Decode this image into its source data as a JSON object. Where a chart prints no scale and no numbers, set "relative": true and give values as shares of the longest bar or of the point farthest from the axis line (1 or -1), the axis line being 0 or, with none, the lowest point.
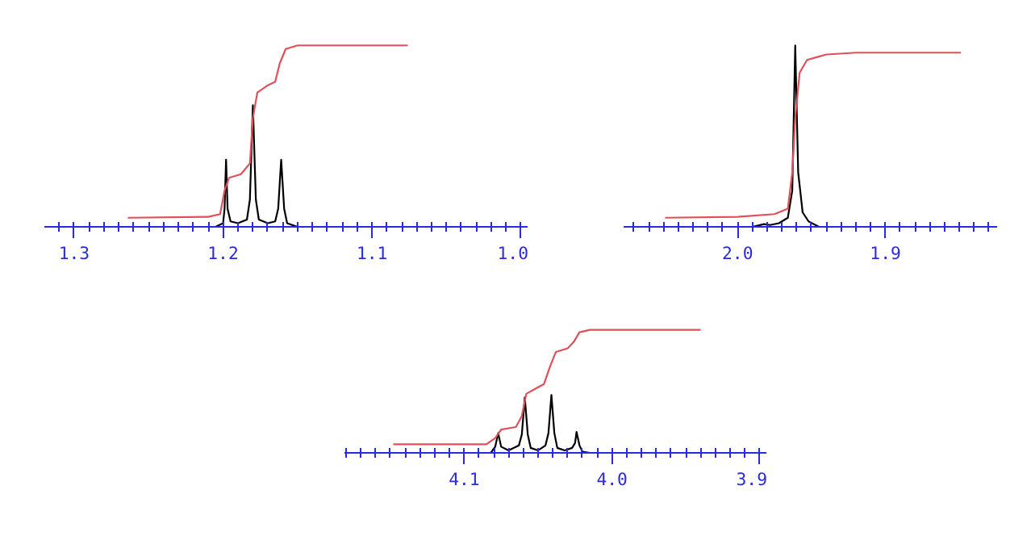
{
  "chart_data": [
    {
      "type": "line",
      "relative": true,
      "xlim": [
        1.32,
        0.995
      ],
      "xticks": [
        {
          "value": 1.31,
          "label": null
        },
        1.3,
        {
          "value": 1.29,
          "label": null
        },
        {
          "value": 1.28,
          "label": null
        },
        {
          "value": 1.27,
          "label": null
        },
        {
          "value": 1.26,
          "label": null
        },
        {
          "value": 1.25,
          "label": null
        },
        {
          "value": 1.24,
          "label": null
        },
        {
          "value": 1.23,
          "label": null
        },
        {
          "value": 1.22,
          "label": null
        },
        {
          "value": 1.21,
          "label": null
        },
        1.2,
        {
          "value": 1.19,
          "label": null
        },
        {
          "value": 1.18,
          "label": null
        },
        {
          "value": 1.17,
          "label": null
        },
        {
          "value": 1.16,
          "label": null
        },
        {
          "value": 1.15,
          "label": null
        },
        {
          "value": 1.14,
          "label": null
        },
        {
          "value": 1.13,
          "label": null
        },
        {
          "value": 1.12,
          "label": null
        },
        {
          "value": 1.11,
          "label": null
        },
        1.1,
        {
          "value": 1.09,
          "label": null
        },
        {
          "value": 1.08,
          "label": null
        },
        {
          "value": 1.07,
          "label": null
        },
        {
          "value": 1.06,
          "label": null
        },
        {
          "value": 1.05,
          "label": null
        },
        {
          "value": 1.04,
          "label": null
        },
        {
          "value": 1.03,
          "label": null
        },
        {
          "value": 1.02,
          "label": null
        },
        {
          "value": 1.01,
          "label": null
        },
        {
          "value": 1.0,
          "label": "1.0"
        }
      ],
      "series": [
        {
          "color": "#000000",
          "x": [
            1.32,
            1.205,
            1.2,
            1.199,
            1.198,
            1.197,
            1.195,
            1.19,
            1.184,
            1.182,
            1.18,
            1.178,
            1.176,
            1.17,
            1.165,
            1.163,
            1.161,
            1.159,
            1.157,
            1.15,
            0.995
          ],
          "values": [
            0,
            0,
            0.02,
            0.1,
            0.37,
            0.1,
            0.03,
            0.02,
            0.04,
            0.15,
            0.67,
            0.15,
            0.04,
            0.02,
            0.03,
            0.1,
            0.37,
            0.1,
            0.02,
            0,
            0
          ]
        },
        {
          "color": "#e0505a",
          "x": [
            1.264,
            1.21,
            1.202,
            1.199,
            1.196,
            1.188,
            1.182,
            1.18,
            1.177,
            1.17,
            1.165,
            1.162,
            1.158,
            1.15,
            1.076
          ],
          "values": [
            0.05,
            0.055,
            0.07,
            0.2,
            0.27,
            0.29,
            0.35,
            0.6,
            0.74,
            0.78,
            0.8,
            0.9,
            0.98,
            1.0,
            1.0
          ]
        }
      ]
    },
    {
      "type": "line",
      "relative": true,
      "xlim": [
        2.077,
        1.824
      ],
      "xticks": [
        {
          "value": 2.07,
          "label": null
        },
        {
          "value": 2.06,
          "label": null
        },
        {
          "value": 2.05,
          "label": null
        },
        {
          "value": 2.04,
          "label": null
        },
        {
          "value": 2.03,
          "label": null
        },
        {
          "value": 2.02,
          "label": null
        },
        {
          "value": 2.01,
          "label": null
        },
        {
          "value": 2.0,
          "label": "2.0"
        },
        {
          "value": 1.99,
          "label": null
        },
        {
          "value": 1.98,
          "label": null
        },
        {
          "value": 1.97,
          "label": null
        },
        {
          "value": 1.96,
          "label": null
        },
        {
          "value": 1.95,
          "label": null
        },
        {
          "value": 1.94,
          "label": null
        },
        {
          "value": 1.93,
          "label": null
        },
        {
          "value": 1.92,
          "label": null
        },
        {
          "value": 1.91,
          "label": null
        },
        1.9,
        {
          "value": 1.89,
          "label": null
        },
        {
          "value": 1.88,
          "label": null
        },
        {
          "value": 1.87,
          "label": null
        },
        {
          "value": 1.86,
          "label": null
        },
        {
          "value": 1.85,
          "label": null
        },
        {
          "value": 1.84,
          "label": null
        },
        {
          "value": 1.83,
          "label": null
        }
      ],
      "series": [
        {
          "color": "#000000",
          "x": [
            2.077,
            1.99,
            1.982,
            1.978,
            1.972,
            1.966,
            1.963,
            1.961,
            1.959,
            1.956,
            1.952,
            1.945,
            1.824
          ],
          "values": [
            0,
            0,
            0.015,
            0.01,
            0.02,
            0.05,
            0.2,
            1.0,
            0.3,
            0.08,
            0.03,
            0,
            0
          ]
        },
        {
          "color": "#e0505a",
          "x": [
            2.049,
            2.0,
            1.975,
            1.966,
            1.963,
            1.961,
            1.958,
            1.953,
            1.94,
            1.92,
            1.849
          ],
          "values": [
            0.05,
            0.055,
            0.07,
            0.1,
            0.3,
            0.6,
            0.85,
            0.92,
            0.95,
            0.96,
            0.96
          ]
        }
      ]
    },
    {
      "type": "line",
      "relative": true,
      "xlim": [
        4.181,
        3.895
      ],
      "xticks": [
        {
          "value": 4.18,
          "label": null
        },
        {
          "value": 4.17,
          "label": null
        },
        {
          "value": 4.16,
          "label": null
        },
        {
          "value": 4.15,
          "label": null
        },
        {
          "value": 4.14,
          "label": null
        },
        {
          "value": 4.13,
          "label": null
        },
        {
          "value": 4.12,
          "label": null
        },
        {
          "value": 4.11,
          "label": null
        },
        4.1,
        {
          "value": 4.09,
          "label": null
        },
        {
          "value": 4.08,
          "label": null
        },
        {
          "value": 4.07,
          "label": null
        },
        {
          "value": 4.06,
          "label": null
        },
        {
          "value": 4.05,
          "label": null
        },
        {
          "value": 4.04,
          "label": null
        },
        {
          "value": 4.03,
          "label": null
        },
        {
          "value": 4.02,
          "label": null
        },
        {
          "value": 4.01,
          "label": null
        },
        {
          "value": 4.0,
          "label": "4.0"
        },
        {
          "value": 3.99,
          "label": null
        },
        {
          "value": 3.98,
          "label": null
        },
        {
          "value": 3.97,
          "label": null
        },
        {
          "value": 3.96,
          "label": null
        },
        {
          "value": 3.95,
          "label": null
        },
        {
          "value": 3.94,
          "label": null
        },
        {
          "value": 3.93,
          "label": null
        },
        {
          "value": 3.92,
          "label": null
        },
        {
          "value": 3.91,
          "label": null
        },
        3.9
      ],
      "series": [
        {
          "color": "#000000",
          "x": [
            4.181,
            4.082,
            4.079,
            4.077,
            4.075,
            4.07,
            4.063,
            4.061,
            4.059,
            4.057,
            4.055,
            4.05,
            4.045,
            4.043,
            4.041,
            4.039,
            4.037,
            4.032,
            4.027,
            4.025,
            4.024,
            4.022,
            4.02,
            4.015,
            3.895
          ],
          "values": [
            0,
            0,
            0.05,
            0.16,
            0.05,
            0.02,
            0.06,
            0.15,
            0.45,
            0.15,
            0.04,
            0.02,
            0.06,
            0.16,
            0.47,
            0.16,
            0.04,
            0.02,
            0.04,
            0.08,
            0.17,
            0.06,
            0.01,
            0,
            0
          ]
        },
        {
          "color": "#e0505a",
          "x": [
            4.148,
            4.085,
            4.079,
            4.075,
            4.065,
            4.061,
            4.058,
            4.052,
            4.046,
            4.042,
            4.038,
            4.03,
            4.026,
            4.022,
            4.015,
            3.94
          ],
          "values": [
            0.07,
            0.07,
            0.12,
            0.19,
            0.21,
            0.3,
            0.48,
            0.52,
            0.56,
            0.7,
            0.82,
            0.85,
            0.9,
            0.98,
            1.0,
            1.0
          ]
        }
      ]
    }
  ]
}
